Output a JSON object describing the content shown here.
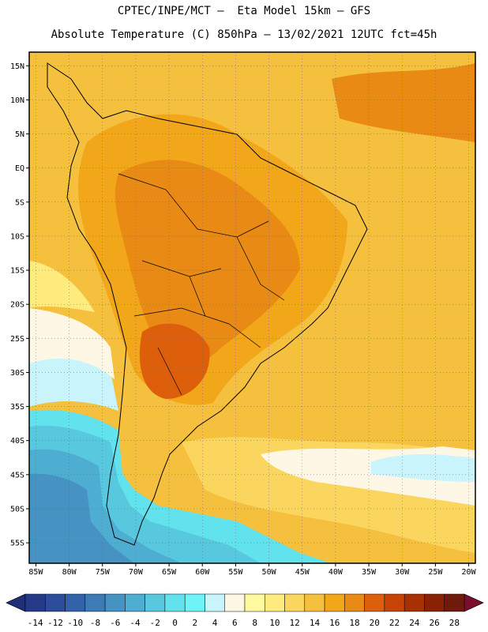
{
  "title_line1": "CPTEC/INPE/MCT –  Eta Model 15km – GFS",
  "title_line2": "Absolute Temperature (C) 850hPa – 13/02/2021 12UTC fct=45h",
  "map": {
    "lon_range": [
      -86,
      -19
    ],
    "lat_range": [
      -58,
      17
    ],
    "lat_ticks": [
      {
        "value": 15,
        "label": "15N"
      },
      {
        "value": 10,
        "label": "10N"
      },
      {
        "value": 5,
        "label": "5N"
      },
      {
        "value": 0,
        "label": "EQ"
      },
      {
        "value": -5,
        "label": "5S"
      },
      {
        "value": -10,
        "label": "10S"
      },
      {
        "value": -15,
        "label": "15S"
      },
      {
        "value": -20,
        "label": "20S"
      },
      {
        "value": -25,
        "label": "25S"
      },
      {
        "value": -30,
        "label": "30S"
      },
      {
        "value": -35,
        "label": "35S"
      },
      {
        "value": -40,
        "label": "40S"
      },
      {
        "value": -45,
        "label": "45S"
      },
      {
        "value": -50,
        "label": "50S"
      },
      {
        "value": -55,
        "label": "55S"
      }
    ],
    "lon_ticks": [
      {
        "value": -85,
        "label": "85W"
      },
      {
        "value": -80,
        "label": "80W"
      },
      {
        "value": -75,
        "label": "75W"
      },
      {
        "value": -70,
        "label": "70W"
      },
      {
        "value": -65,
        "label": "65W"
      },
      {
        "value": -60,
        "label": "60W"
      },
      {
        "value": -55,
        "label": "55W"
      },
      {
        "value": -50,
        "label": "50W"
      },
      {
        "value": -45,
        "label": "45W"
      },
      {
        "value": -40,
        "label": "40W"
      },
      {
        "value": -35,
        "label": "35W"
      },
      {
        "value": -30,
        "label": "30W"
      },
      {
        "value": -25,
        "label": "25W"
      },
      {
        "value": -20,
        "label": "20W"
      }
    ]
  },
  "colorbar": {
    "labels": [
      "-14",
      "-12",
      "-10",
      "-8",
      "-6",
      "-4",
      "-2",
      "0",
      "2",
      "4",
      "6",
      "8",
      "10",
      "12",
      "14",
      "16",
      "18",
      "20",
      "22",
      "24",
      "26",
      "28"
    ],
    "colors": [
      "#253a87",
      "#2b4d9c",
      "#3462a8",
      "#3d7bb7",
      "#4592c3",
      "#4eaed2",
      "#58c8de",
      "#62e2ec",
      "#6ef4f8",
      "#c9f4fb",
      "#fff7e6",
      "#fffaa0",
      "#ffeb7e",
      "#fbd65e",
      "#f4c03e",
      "#f2a61a",
      "#e88a13",
      "#dd5f0c",
      "#c84406",
      "#a83104",
      "#8b2104",
      "#6e1a0c"
    ],
    "low_cap_color": "#1f2f78",
    "high_cap_color": "#7a0e2e"
  }
}
